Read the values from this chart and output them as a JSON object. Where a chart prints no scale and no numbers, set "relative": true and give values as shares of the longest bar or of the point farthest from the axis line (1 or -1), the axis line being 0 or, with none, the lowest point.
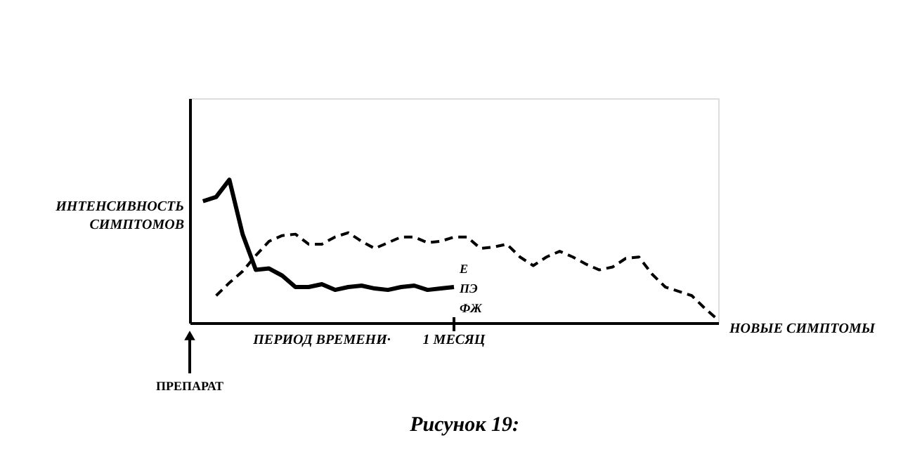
{
  "chart_data": {
    "type": "line",
    "title": "Рисунок 19:",
    "xlabel": "ПЕРИОД ВРЕМЕНИ·",
    "ylabel": "ИНТЕНСИВНОСТЬ СИМПТОМОВ",
    "relative": true,
    "categories": [
      null,
      null,
      null,
      null,
      null,
      null,
      null,
      null,
      null,
      null,
      null,
      null,
      null,
      null,
      null,
      null,
      null,
      null,
      null,
      null,
      null,
      null,
      null,
      null,
      null,
      null,
      null,
      null,
      null,
      null,
      null,
      null,
      null,
      null,
      null,
      null,
      null,
      null,
      null,
      null,
      null
    ],
    "series": [
      {
        "color": "#000000",
        "line_style": "solid",
        "values": [
          null,
          0.85,
          0.88,
          1.0,
          0.62,
          0.37,
          0.38,
          0.33,
          0.25,
          0.25,
          0.27,
          0.23,
          0.25,
          0.26,
          0.24,
          0.23,
          0.25,
          0.26,
          0.23,
          0.24,
          0.25,
          null,
          null,
          null,
          null,
          null,
          null,
          null,
          null,
          null,
          null,
          null,
          null,
          null,
          null,
          null,
          null,
          null,
          null,
          null,
          null
        ]
      },
      {
        "name": "НОВЫЕ СИМПТОМЫ",
        "color": "#000000",
        "line_style": "dashed",
        "values": [
          null,
          null,
          0.19,
          0.28,
          0.36,
          0.47,
          0.57,
          0.61,
          0.62,
          0.55,
          0.55,
          0.6,
          0.63,
          0.57,
          0.52,
          0.56,
          0.6,
          0.6,
          0.56,
          0.57,
          0.6,
          0.6,
          0.52,
          0.53,
          0.55,
          0.46,
          0.4,
          0.46,
          0.5,
          0.46,
          0.41,
          0.37,
          0.39,
          0.45,
          0.46,
          0.34,
          0.25,
          0.22,
          0.19,
          0.1,
          0.02
        ]
      }
    ],
    "annotations": [
      "Е",
      "ПЭ",
      "ФЖ",
      "1 МЕСЯЦ",
      "ПРЕПАРАТ"
    ],
    "marker": "none",
    "grid": false
  }
}
